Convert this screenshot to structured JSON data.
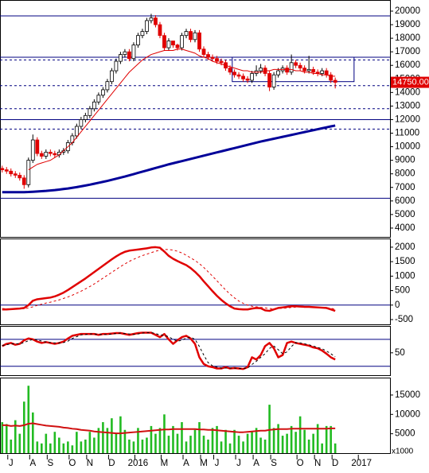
{
  "chart_data": [
    {
      "type": "candlestick",
      "xlim": [
        -0.5,
        88.5
      ],
      "ylim": [
        3350,
        20820
      ],
      "yticks": [
        4000,
        5000,
        6000,
        7000,
        8000,
        9000,
        10000,
        11000,
        12000,
        13000,
        14000,
        15000,
        16000,
        17000,
        18000,
        19000,
        20000
      ],
      "up_color": "#ffffff",
      "down_color": "#e00000",
      "line_color": "#000080",
      "open": [
        8400,
        8300,
        8200,
        8000,
        7900,
        7700,
        7200,
        9000,
        10500,
        9500,
        9300,
        9600,
        9500,
        9400,
        9600,
        9700,
        10300,
        10800,
        11500,
        12000,
        12300,
        12800,
        13300,
        13800,
        14200,
        14800,
        15600,
        16300,
        16800,
        17000,
        16500,
        17500,
        18200,
        18500,
        19300,
        19500,
        19000,
        18200,
        17300,
        17800,
        17500,
        17300,
        18200,
        18500,
        17900,
        18400,
        17200,
        16800,
        16600,
        16500,
        16300,
        16200,
        15800,
        15500,
        15300,
        15200,
        15000,
        14900,
        15400,
        15600,
        15800,
        15400,
        14400,
        15300,
        15600,
        15800,
        15500,
        16200,
        16000,
        15800,
        15600,
        15700,
        15500,
        15400,
        15600,
        15300,
        14900
      ],
      "high": [
        8600,
        8500,
        8400,
        8200,
        8100,
        7900,
        9200,
        10900,
        10700,
        9700,
        9800,
        9800,
        9700,
        9800,
        9900,
        10500,
        11000,
        11700,
        12200,
        12500,
        13000,
        13500,
        14000,
        14400,
        15000,
        15800,
        16500,
        17000,
        17200,
        17200,
        17700,
        18400,
        18700,
        19500,
        19800,
        19700,
        19200,
        18400,
        18000,
        17800,
        17600,
        18400,
        18700,
        18700,
        18600,
        18600,
        17400,
        17000,
        16800,
        16700,
        16500,
        16400,
        16000,
        15700,
        15500,
        15400,
        15200,
        15600,
        16000,
        16100,
        16000,
        15600,
        15500,
        15800,
        16000,
        16000,
        16800,
        16400,
        16200,
        16000,
        16700,
        15900,
        15700,
        15800,
        15800,
        15500,
        15100
      ],
      "low": [
        8100,
        8000,
        7800,
        7700,
        7500,
        6900,
        7000,
        8800,
        9300,
        9100,
        9100,
        9300,
        9200,
        9200,
        9400,
        9500,
        10100,
        10600,
        11300,
        11800,
        12100,
        12600,
        13100,
        13600,
        14000,
        14600,
        15400,
        16100,
        16600,
        16300,
        16300,
        17300,
        18000,
        18300,
        19100,
        18800,
        18000,
        17100,
        17100,
        17300,
        17100,
        17100,
        18000,
        17700,
        17700,
        17000,
        16600,
        16400,
        16300,
        16100,
        16000,
        15600,
        15300,
        15100,
        15000,
        14800,
        14700,
        14700,
        15200,
        15400,
        15200,
        14100,
        14200,
        15100,
        15400,
        15300,
        15300,
        15800,
        15600,
        15400,
        15400,
        15300,
        15200,
        15200,
        15100,
        14700,
        14300
      ],
      "close": [
        8300,
        8200,
        8000,
        7900,
        7700,
        7200,
        9000,
        10500,
        9500,
        9300,
        9600,
        9500,
        9400,
        9600,
        9700,
        10300,
        10800,
        11500,
        12000,
        12300,
        12800,
        13300,
        13800,
        14200,
        14800,
        15600,
        16300,
        16800,
        17000,
        16500,
        17500,
        18200,
        18500,
        19300,
        19500,
        19000,
        18200,
        17300,
        17800,
        17500,
        17300,
        18200,
        18500,
        17900,
        18400,
        17200,
        16800,
        16600,
        16500,
        16300,
        16200,
        15800,
        15500,
        15300,
        15200,
        15000,
        14900,
        15400,
        15600,
        15800,
        15400,
        14400,
        15300,
        15600,
        15800,
        15500,
        16200,
        16000,
        15800,
        15600,
        15700,
        15500,
        15400,
        15600,
        15300,
        14900,
        14750
      ],
      "overlays": [
        {
          "color": "#e00000",
          "width": 1,
          "values": [
            null,
            null,
            null,
            null,
            null,
            null,
            8300,
            8500,
            8700,
            8800,
            8900,
            9000,
            9200,
            9400,
            9700,
            10000,
            10300,
            10700,
            11100,
            11500,
            11900,
            12300,
            12700,
            13100,
            13500,
            13900,
            14300,
            14700,
            15100,
            15500,
            15800,
            16100,
            16400,
            16600,
            16800,
            16900,
            17000,
            17100,
            17100,
            17100,
            17200,
            17200,
            17100,
            17000,
            16900,
            16700,
            16600,
            16500,
            16300,
            16200,
            16100,
            16000,
            15900,
            15800,
            15700,
            15600,
            15600,
            15500,
            15500,
            15500,
            15600,
            15600,
            15700,
            15700,
            15700,
            15700,
            15700,
            15600,
            15600,
            15500,
            15500,
            15400,
            15400,
            15300,
            15300,
            15200,
            15200
          ]
        },
        {
          "color": "#000099",
          "width": 3,
          "values": [
            6650,
            6650,
            6650,
            6650,
            6650,
            6650,
            6660,
            6680,
            6700,
            6720,
            6740,
            6770,
            6800,
            6840,
            6880,
            6920,
            6970,
            7020,
            7080,
            7140,
            7200,
            7270,
            7340,
            7410,
            7480,
            7560,
            7640,
            7720,
            7800,
            7890,
            7980,
            8070,
            8160,
            8250,
            8340,
            8430,
            8520,
            8610,
            8700,
            8780,
            8860,
            8940,
            9020,
            9100,
            9180,
            9260,
            9340,
            9420,
            9500,
            9580,
            9660,
            9740,
            9820,
            9900,
            9980,
            10060,
            10140,
            10220,
            10300,
            10380,
            10450,
            10520,
            10590,
            10660,
            10730,
            10800,
            10870,
            10940,
            11010,
            11080,
            11150,
            11220,
            11290,
            11360,
            11430,
            11500,
            11560
          ]
        }
      ],
      "hlines": [
        {
          "value": 19650,
          "style": "solid"
        },
        {
          "value": 16600,
          "style": "solid"
        },
        {
          "value": 16400,
          "style": "dotted"
        },
        {
          "value": 14500,
          "style": "dotted"
        },
        {
          "value": 12800,
          "style": "dotted"
        },
        {
          "value": 12000,
          "style": "solid"
        },
        {
          "value": 11300,
          "style": "dotted"
        },
        {
          "value": 6200,
          "style": "solid"
        }
      ],
      "box": {
        "xlim": [
          52.5,
          80.3
        ],
        "ylim": [
          14800,
          16600
        ]
      },
      "last_price": 14750,
      "last_price_label": "14750.00"
    },
    {
      "type": "line",
      "xlim": [
        -0.5,
        88.5
      ],
      "ylim": [
        -665,
        2300
      ],
      "yticks": [
        -500,
        0,
        500,
        1000,
        1500,
        2000
      ],
      "line_color": "#000080",
      "hlines": [
        {
          "value": 0,
          "style": "solid"
        }
      ],
      "series": [
        {
          "color": "#e00000",
          "width": 2.5,
          "dash": false,
          "values": [
            -150,
            -150,
            -140,
            -130,
            -120,
            -100,
            0,
            150,
            200,
            220,
            240,
            260,
            300,
            360,
            430,
            520,
            620,
            720,
            820,
            920,
            1030,
            1140,
            1250,
            1360,
            1470,
            1580,
            1680,
            1770,
            1840,
            1880,
            1900,
            1920,
            1940,
            1960,
            1990,
            2000,
            1980,
            1850,
            1700,
            1600,
            1520,
            1450,
            1380,
            1280,
            1150,
            1000,
            820,
            650,
            480,
            320,
            180,
            60,
            -40,
            -120,
            -140,
            -150,
            -150,
            -120,
            -100,
            -110,
            -180,
            -200,
            -150,
            -100,
            -80,
            -60,
            -40,
            -40,
            -50,
            -60,
            -60,
            -70,
            -80,
            -90,
            -100,
            -150,
            -200
          ]
        },
        {
          "color": "#e00000",
          "width": 1,
          "dash": true,
          "values": [
            -120,
            -125,
            -130,
            -130,
            -130,
            -125,
            -100,
            -60,
            -10,
            30,
            70,
            100,
            140,
            180,
            230,
            280,
            340,
            410,
            480,
            560,
            640,
            730,
            830,
            930,
            1030,
            1130,
            1230,
            1330,
            1420,
            1510,
            1580,
            1650,
            1710,
            1760,
            1810,
            1860,
            1900,
            1920,
            1920,
            1900,
            1860,
            1800,
            1720,
            1630,
            1540,
            1430,
            1300,
            1150,
            1000,
            840,
            680,
            520,
            380,
            250,
            140,
            60,
            0,
            -40,
            -60,
            -80,
            -100,
            -120,
            -130,
            -120,
            -110,
            -100,
            -80,
            -70,
            -60,
            -60,
            -60,
            -60,
            -70,
            -80,
            -90,
            -110,
            -140
          ]
        }
      ]
    },
    {
      "type": "line",
      "xlim": [
        -0.5,
        88.5
      ],
      "ylim": [
        0,
        110
      ],
      "yticks": [
        50
      ],
      "line_color": "#000080",
      "hlines": [
        {
          "value": 80,
          "style": "solid"
        },
        {
          "value": 20,
          "style": "solid"
        }
      ],
      "series": [
        {
          "color": "#e00000",
          "width": 2.5,
          "dash": false,
          "values": [
            65,
            70,
            72,
            68,
            70,
            78,
            82,
            80,
            75,
            72,
            74,
            72,
            70,
            72,
            75,
            82,
            88,
            90,
            92,
            92,
            92,
            92,
            90,
            92,
            92,
            93,
            94,
            94,
            92,
            90,
            92,
            94,
            95,
            95,
            95,
            90,
            85,
            92,
            80,
            70,
            78,
            85,
            88,
            82,
            70,
            40,
            25,
            20,
            18,
            15,
            15,
            18,
            15,
            16,
            15,
            14,
            18,
            40,
            35,
            45,
            65,
            72,
            60,
            40,
            45,
            72,
            75,
            72,
            70,
            68,
            66,
            62,
            60,
            55,
            48,
            40,
            35
          ]
        },
        {
          "color": "#000000",
          "width": 1,
          "dash": true,
          "values": [
            66,
            68,
            70,
            70,
            70,
            73,
            77,
            80,
            79,
            76,
            74,
            73,
            72,
            72,
            73,
            76,
            82,
            86,
            90,
            91,
            92,
            92,
            91,
            91,
            91,
            92,
            93,
            94,
            93,
            92,
            91,
            92,
            94,
            95,
            95,
            93,
            90,
            89,
            86,
            80,
            76,
            78,
            83,
            85,
            80,
            64,
            45,
            28,
            21,
            18,
            16,
            16,
            16,
            16,
            15,
            15,
            16,
            24,
            31,
            40,
            48,
            60,
            65,
            57,
            48,
            52,
            64,
            73,
            72,
            70,
            68,
            65,
            62,
            59,
            54,
            48,
            41
          ]
        }
      ]
    },
    {
      "type": "bar",
      "xlim": [
        -0.5,
        88.5
      ],
      "ylim": [
        0,
        19500
      ],
      "yticks": [
        5000,
        10000,
        15000
      ],
      "unit_label": "x1000",
      "color": "#22bb22",
      "values": [
        8000,
        7500,
        3500,
        8500,
        5000,
        13300,
        17400,
        10500,
        3000,
        2500,
        5000,
        2500,
        5500,
        4000,
        2500,
        3000,
        2000,
        5500,
        3000,
        3500,
        5500,
        4000,
        6500,
        8000,
        6500,
        9000,
        5000,
        9500,
        6000,
        3500,
        3000,
        6500,
        3500,
        4000,
        7000,
        5000,
        6500,
        10000,
        4500,
        7000,
        5000,
        8000,
        3000,
        4500,
        6000,
        8000,
        4500,
        3500,
        6500,
        7000,
        3000,
        6000,
        2500,
        6000,
        4500,
        3000,
        5000,
        5500,
        6500,
        4000,
        3500,
        12500,
        6500,
        7500,
        4500,
        5000,
        7000,
        5500,
        9500,
        6000,
        3500,
        5000,
        7500,
        2500,
        7000,
        7000,
        2500
      ],
      "overlays": [
        {
          "color": "#d01010",
          "width": 2,
          "values": [
            7200,
            7200,
            7000,
            7100,
            7000,
            7200,
            7600,
            7700,
            7500,
            7300,
            7100,
            7000,
            6900,
            6800,
            6600,
            6500,
            6300,
            6200,
            6000,
            5900,
            5800,
            5600,
            5500,
            5400,
            5300,
            5200,
            5100,
            5100,
            5200,
            5300,
            5400,
            5500,
            5600,
            5700,
            5800,
            5900,
            6000,
            6100,
            6100,
            6200,
            6200,
            6200,
            6200,
            6200,
            6200,
            6100,
            6100,
            6000,
            6000,
            5900,
            5800,
            5700,
            5600,
            5500,
            5400,
            5400,
            5500,
            5600,
            5700,
            5800,
            5800,
            6000,
            6100,
            6200,
            6200,
            6200,
            6300,
            6300,
            6300,
            6300,
            6300,
            6300,
            6300,
            6300,
            6300,
            6400,
            6400
          ]
        }
      ],
      "xticks": [
        {
          "value": 2,
          "label": "J"
        },
        {
          "value": 7,
          "label": "A"
        },
        {
          "value": 11,
          "label": "S"
        },
        {
          "value": 16,
          "label": "O"
        },
        {
          "value": 20,
          "label": "N"
        },
        {
          "value": 25,
          "label": "D"
        },
        {
          "value": 31,
          "label": "2016"
        },
        {
          "value": 37,
          "label": "M"
        },
        {
          "value": 42,
          "label": "A"
        },
        {
          "value": 46,
          "label": "M"
        },
        {
          "value": 49,
          "label": "J"
        },
        {
          "value": 54,
          "label": "J"
        },
        {
          "value": 58,
          "label": "A"
        },
        {
          "value": 62,
          "label": "S"
        },
        {
          "value": 68,
          "label": "O"
        },
        {
          "value": 72,
          "label": "N"
        },
        {
          "value": 76,
          "label": "D"
        },
        {
          "value": 82,
          "label": "2017"
        }
      ]
    }
  ]
}
